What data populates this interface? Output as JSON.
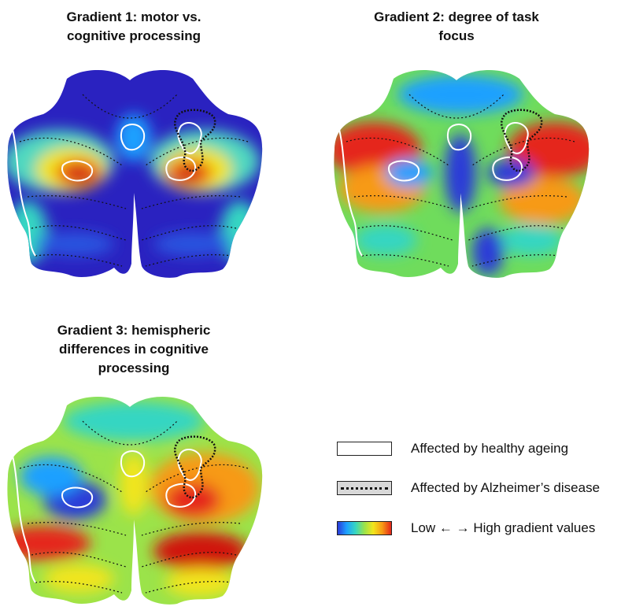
{
  "panels": [
    {
      "title_line1": "Gradient 1: motor vs.",
      "title_line2": "cognitive processing"
    },
    {
      "title_line1": "Gradient 2: degree of task",
      "title_line2": "focus"
    },
    {
      "title_line1": "Gradient 3: hemispheric",
      "title_line2": "differences in cognitive",
      "title_line3": "processing"
    }
  ],
  "legend": {
    "healthy": "Affected by healthy ageing",
    "alzheimers": "Affected by Alzheimer’s disease",
    "gradient": "Low ← → High gradient values"
  },
  "colors": {
    "low": "#2a3ad8",
    "mid": "#36d6c2",
    "high": "#e5261a",
    "outline_healthy": "#ffffff",
    "outline_alz": "#111111"
  }
}
